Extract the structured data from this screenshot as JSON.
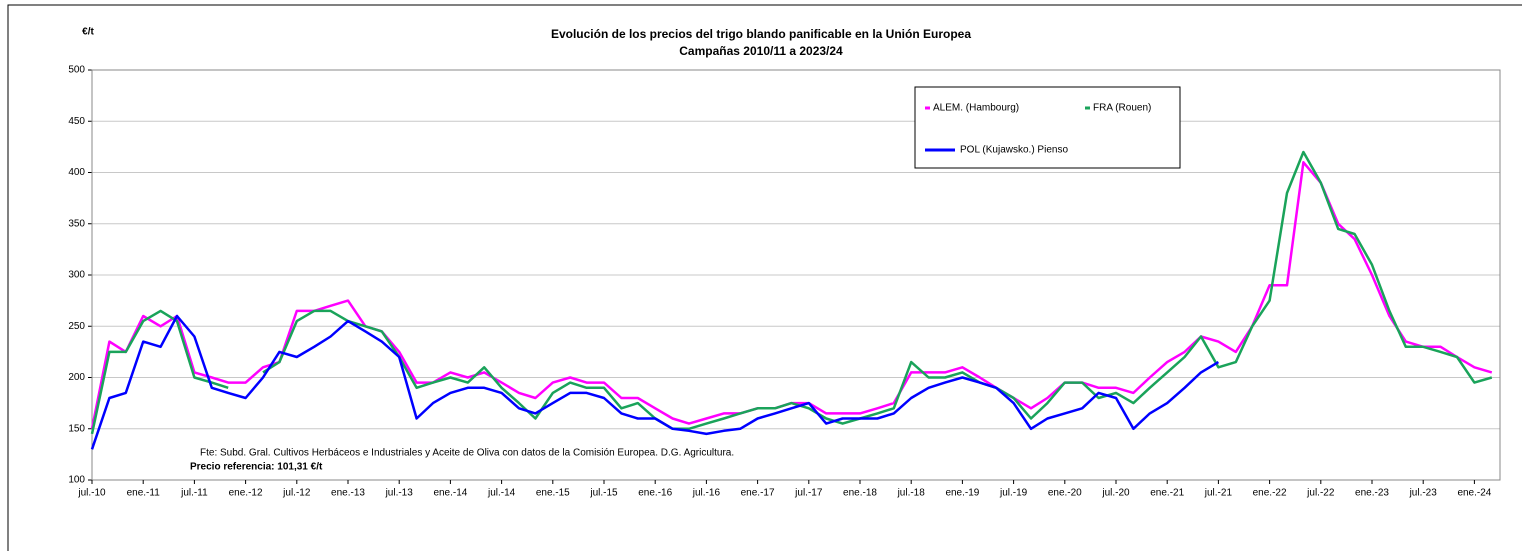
{
  "chart_data": {
    "type": "line",
    "title": "Evolución de los precios del trigo blando panificable en la Unión Europea",
    "subtitle": "Campañas 2010/11 a 2023/24",
    "y_label": "€/t",
    "source": "Fte: Subd. Gral. Cultivos Herbáceos e Industriales y Aceite de Oliva con datos de la Comisión Europea. D.G. Agricultura.",
    "note": "Precio referencia: 101,31 €/t",
    "x": [
      2010.5,
      2010.67,
      2010.83,
      2011,
      2011.17,
      2011.33,
      2011.5,
      2011.67,
      2011.83,
      2012,
      2012.17,
      2012.33,
      2012.5,
      2012.67,
      2012.83,
      2013,
      2013.17,
      2013.33,
      2013.5,
      2013.67,
      2013.83,
      2014,
      2014.17,
      2014.33,
      2014.5,
      2014.67,
      2014.83,
      2015,
      2015.17,
      2015.33,
      2015.5,
      2015.67,
      2015.83,
      2016,
      2016.17,
      2016.33,
      2016.5,
      2016.67,
      2016.83,
      2017,
      2017.17,
      2017.33,
      2017.5,
      2017.67,
      2017.83,
      2018,
      2018.17,
      2018.33,
      2018.5,
      2018.67,
      2018.83,
      2019,
      2019.17,
      2019.33,
      2019.5,
      2019.67,
      2019.83,
      2020,
      2020.17,
      2020.33,
      2020.5,
      2020.67,
      2020.83,
      2021,
      2021.17,
      2021.33,
      2021.5,
      2021.67,
      2021.83,
      2022,
      2022.17,
      2022.33,
      2022.5,
      2022.67,
      2022.83,
      2023,
      2023.17,
      2023.33,
      2023.5,
      2023.67,
      2023.83,
      2024,
      2024.17
    ],
    "series": [
      {
        "name": "ALEM. (Hambourg)",
        "color": "#ff00ff",
        "values": [
          150,
          235,
          225,
          260,
          250,
          260,
          205,
          200,
          195,
          195,
          210,
          215,
          265,
          265,
          270,
          275,
          250,
          245,
          225,
          195,
          195,
          205,
          200,
          205,
          195,
          185,
          180,
          195,
          200,
          195,
          195,
          180,
          180,
          170,
          160,
          155,
          160,
          165,
          165,
          170,
          170,
          175,
          175,
          165,
          165,
          165,
          170,
          175,
          205,
          205,
          205,
          210,
          200,
          190,
          180,
          170,
          180,
          195,
          195,
          190,
          190,
          185,
          200,
          215,
          225,
          240,
          235,
          225,
          250,
          290,
          290,
          410,
          390,
          350,
          335,
          300,
          260,
          235,
          230,
          230,
          220,
          210,
          205
        ]
      },
      {
        "name": "FRA (Rouen)",
        "color": "#1aa35a",
        "values": [
          145,
          225,
          225,
          255,
          265,
          255,
          200,
          195,
          190,
          null,
          205,
          215,
          255,
          265,
          265,
          255,
          250,
          245,
          220,
          190,
          195,
          200,
          195,
          210,
          190,
          175,
          160,
          185,
          195,
          190,
          190,
          170,
          175,
          160,
          150,
          150,
          155,
          160,
          165,
          170,
          170,
          175,
          170,
          160,
          155,
          160,
          165,
          170,
          215,
          200,
          200,
          205,
          195,
          190,
          180,
          160,
          175,
          195,
          195,
          180,
          185,
          175,
          190,
          205,
          220,
          240,
          210,
          215,
          250,
          275,
          380,
          420,
          390,
          345,
          340,
          310,
          265,
          230,
          230,
          225,
          220,
          195,
          200
        ]
      },
      {
        "name": "POL (Kujawsko.) Pienso",
        "color": "#0000ff",
        "values": [
          130,
          180,
          185,
          235,
          230,
          260,
          240,
          190,
          185,
          180,
          200,
          225,
          220,
          230,
          240,
          255,
          245,
          235,
          220,
          160,
          175,
          185,
          190,
          190,
          185,
          170,
          165,
          175,
          185,
          185,
          180,
          165,
          160,
          160,
          150,
          148,
          145,
          148,
          150,
          160,
          165,
          170,
          175,
          155,
          160,
          160,
          160,
          165,
          180,
          190,
          195,
          200,
          195,
          190,
          175,
          150,
          160,
          165,
          170,
          185,
          180,
          150,
          165,
          175,
          190,
          205,
          215,
          null,
          null,
          null,
          null,
          null,
          null,
          null,
          null,
          null,
          null,
          null,
          null,
          null,
          null,
          null,
          null
        ]
      }
    ],
    "xlim": [
      2010.5,
      2024.25
    ],
    "xticks": [
      {
        "value": 2010.5,
        "label": "jul.-10"
      },
      {
        "value": 2011,
        "label": "ene.-11"
      },
      {
        "value": 2011.5,
        "label": "jul.-11"
      },
      {
        "value": 2012,
        "label": "ene.-12"
      },
      {
        "value": 2012.5,
        "label": "jul.-12"
      },
      {
        "value": 2013,
        "label": "ene.-13"
      },
      {
        "value": 2013.5,
        "label": "jul.-13"
      },
      {
        "value": 2014,
        "label": "ene.-14"
      },
      {
        "value": 2014.5,
        "label": "jul.-14"
      },
      {
        "value": 2015,
        "label": "ene.-15"
      },
      {
        "value": 2015.5,
        "label": "jul.-15"
      },
      {
        "value": 2016,
        "label": "ene.-16"
      },
      {
        "value": 2016.5,
        "label": "jul.-16"
      },
      {
        "value": 2017,
        "label": "ene.-17"
      },
      {
        "value": 2017.5,
        "label": "jul.-17"
      },
      {
        "value": 2018,
        "label": "ene.-18"
      },
      {
        "value": 2018.5,
        "label": "jul.-18"
      },
      {
        "value": 2019,
        "label": "ene.-19"
      },
      {
        "value": 2019.5,
        "label": "jul.-19"
      },
      {
        "value": 2020,
        "label": "ene.-20"
      },
      {
        "value": 2020.5,
        "label": "jul.-20"
      },
      {
        "value": 2021,
        "label": "ene.-21"
      },
      {
        "value": 2021.5,
        "label": "jul.-21"
      },
      {
        "value": 2022,
        "label": "ene.-22"
      },
      {
        "value": 2022.5,
        "label": "jul.-22"
      },
      {
        "value": 2023,
        "label": "ene.-23"
      },
      {
        "value": 2023.5,
        "label": "jul.-23"
      },
      {
        "value": 2024,
        "label": "ene.-24"
      }
    ],
    "ylim": [
      100,
      500
    ],
    "yticks": [
      100,
      150,
      200,
      250,
      300,
      350,
      400,
      450,
      500
    ],
    "grid": true,
    "legend": "top-right"
  }
}
